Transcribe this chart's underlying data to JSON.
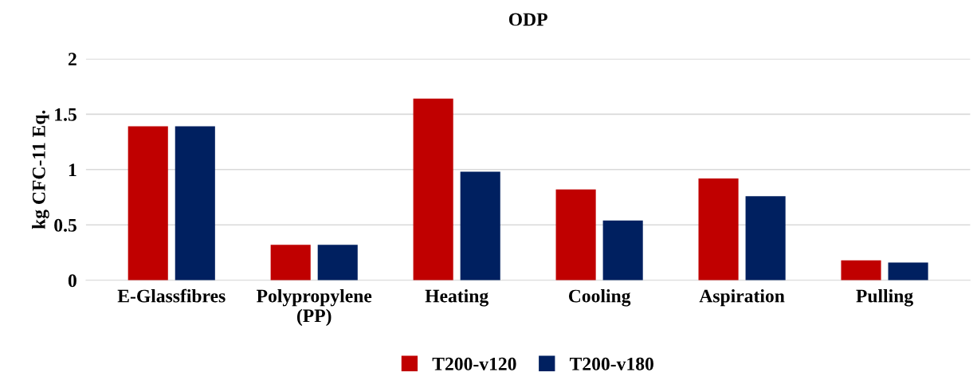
{
  "chart_data": {
    "type": "bar",
    "title": "ODP",
    "ylabel": "kg CFC-11 Eq.",
    "categories": [
      "E-Glassfibres",
      "Polypropylene\n(PP)",
      "Heating",
      "Cooling",
      "Aspiration",
      "Pulling"
    ],
    "series": [
      {
        "name": "T200-v120",
        "color": "#c00000",
        "values": [
          1.39,
          0.32,
          1.64,
          0.82,
          0.92,
          0.18
        ]
      },
      {
        "name": "T200-v180",
        "color": "#002060",
        "values": [
          1.39,
          0.32,
          0.98,
          0.54,
          0.76,
          0.16
        ]
      }
    ],
    "ylim": [
      0,
      2
    ],
    "yticks": [
      0,
      0.5,
      1,
      1.5,
      2
    ],
    "grid": "y",
    "legend": "bottom"
  }
}
